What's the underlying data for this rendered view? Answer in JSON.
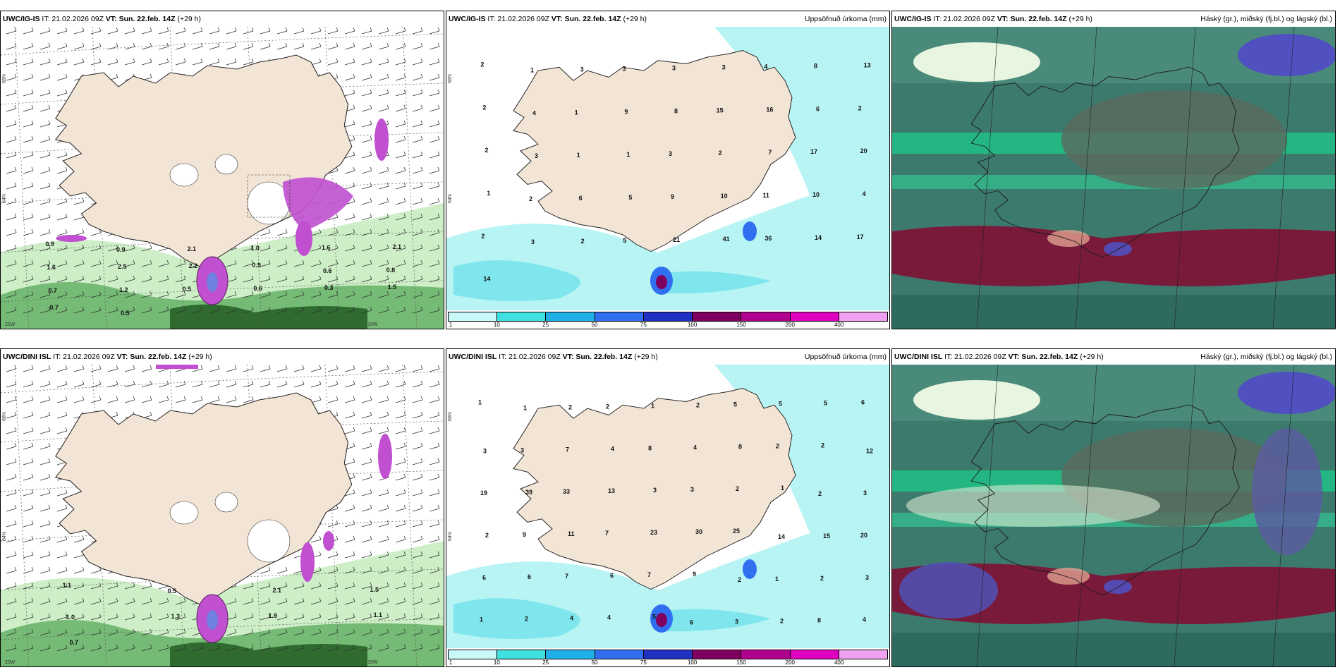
{
  "panels": [
    {
      "id": "ig-wind",
      "model": "UWC/IG-IS",
      "it_label": "IT: 21.02.2026 09Z",
      "vt_label": "VT: Sun. 22.feb. 14Z",
      "lead": "(+29 h)",
      "right_title": "",
      "labels": [
        "0.9",
        "0.9",
        "2.1",
        "1.0",
        "1.6",
        "2.1",
        "1.6",
        "2.5",
        "2.2",
        "0.9",
        "0.6",
        "0.8",
        "0.7",
        "1.2",
        "0.5",
        "0.6",
        "0.3",
        "1.5",
        "0.7",
        "0.5"
      ],
      "grid": [
        "66N",
        "64N",
        "22W",
        "15W"
      ]
    },
    {
      "id": "ig-precip",
      "model": "UWC/IG-IS",
      "it_label": "IT: 21.02.2026 09Z",
      "vt_label": "VT: Sun. 22.feb. 14Z",
      "lead": "(+29 h)",
      "right_title": "Uppsöfnuð úrkoma (mm)",
      "labels": [
        "2",
        "1",
        "3",
        "3",
        "3",
        "3",
        "4",
        "8",
        "13",
        "2",
        "4",
        "1",
        "9",
        "8",
        "15",
        "16",
        "6",
        "2",
        "2",
        "3",
        "1",
        "1",
        "3",
        "2",
        "7",
        "17",
        "20",
        "1",
        "2",
        "6",
        "5",
        "9",
        "10",
        "11",
        "10",
        "4",
        "2",
        "3",
        "2",
        "5",
        "21",
        "41",
        "36",
        "14",
        "17",
        "14"
      ],
      "grid": [
        "66N",
        "64N"
      ],
      "colorbar": [
        "1",
        "10",
        "25",
        "50",
        "75",
        "100",
        "150",
        "200",
        "400"
      ]
    },
    {
      "id": "ig-cloud",
      "model": "UWC/IG-IS",
      "it_label": "IT: 21.02.2026 09Z",
      "vt_label": "VT: Sun. 22.feb. 14Z",
      "lead": "(+29 h)",
      "right_title": "Háský (gr.), miðský (fj.bl.) og lágský (bl.)"
    },
    {
      "id": "dini-wind",
      "model": "UWC/DINI ISL",
      "it_label": "IT: 21.02.2026 09Z",
      "vt_label": "VT: Sun. 22.feb. 14Z",
      "lead": "(+29 h)",
      "right_title": "",
      "labels": [
        "1.1",
        "0.5",
        "2.1",
        "1.5",
        "1.0",
        "1.3",
        "1.9",
        "1.1",
        "0.7"
      ],
      "grid": [
        "66N",
        "64N",
        "20W",
        "15W"
      ]
    },
    {
      "id": "dini-precip",
      "model": "UWC/DINI ISL",
      "it_label": "IT: 21.02.2026 09Z",
      "vt_label": "VT: Sun. 22.feb. 14Z",
      "lead": "(+29 h)",
      "right_title": "Uppsöfnuð úrkoma (mm)",
      "labels": [
        "1",
        "1",
        "2",
        "2",
        "1",
        "2",
        "5",
        "5",
        "5",
        "6",
        "3",
        "3",
        "7",
        "4",
        "8",
        "4",
        "8",
        "2",
        "2",
        "12",
        "19",
        "39",
        "33",
        "13",
        "3",
        "3",
        "2",
        "1",
        "2",
        "3",
        "2",
        "9",
        "11",
        "7",
        "23",
        "30",
        "25",
        "14",
        "15",
        "20",
        "6",
        "6",
        "7",
        "6",
        "7",
        "9",
        "2",
        "1",
        "2",
        "3",
        "1",
        "2",
        "4",
        "4",
        "5",
        "6",
        "3",
        "2",
        "8",
        "4"
      ],
      "grid": [
        "66N",
        "64N"
      ],
      "colorbar": [
        "1",
        "10",
        "25",
        "50",
        "75",
        "100",
        "150",
        "200",
        "400"
      ]
    },
    {
      "id": "dini-cloud",
      "model": "UWC/DINI ISL",
      "it_label": "IT: 21.02.2026 09Z",
      "vt_label": "VT: Sun. 22.feb. 14Z",
      "lead": "(+29 h)",
      "right_title": "Háský (gr.), miðský (fj.bl.) og lágský (bl.)"
    }
  ],
  "colors": {
    "land": "#f3e5d6",
    "sea_precip": "#b8f4f4",
    "green_light": "#c8ecc0",
    "green_dark": "#2f6b2f",
    "magenta": "#c050d0",
    "cloud_high": "#7a7a7a",
    "cloud_mid": "#3a9a6a",
    "cloud_low": "#5050c0",
    "cb": [
      "#c8f8f8",
      "#40e0e0",
      "#20b0e8",
      "#3070f0",
      "#2030c0",
      "#800060",
      "#b00090",
      "#e000c0",
      "#f0a0f0"
    ]
  }
}
